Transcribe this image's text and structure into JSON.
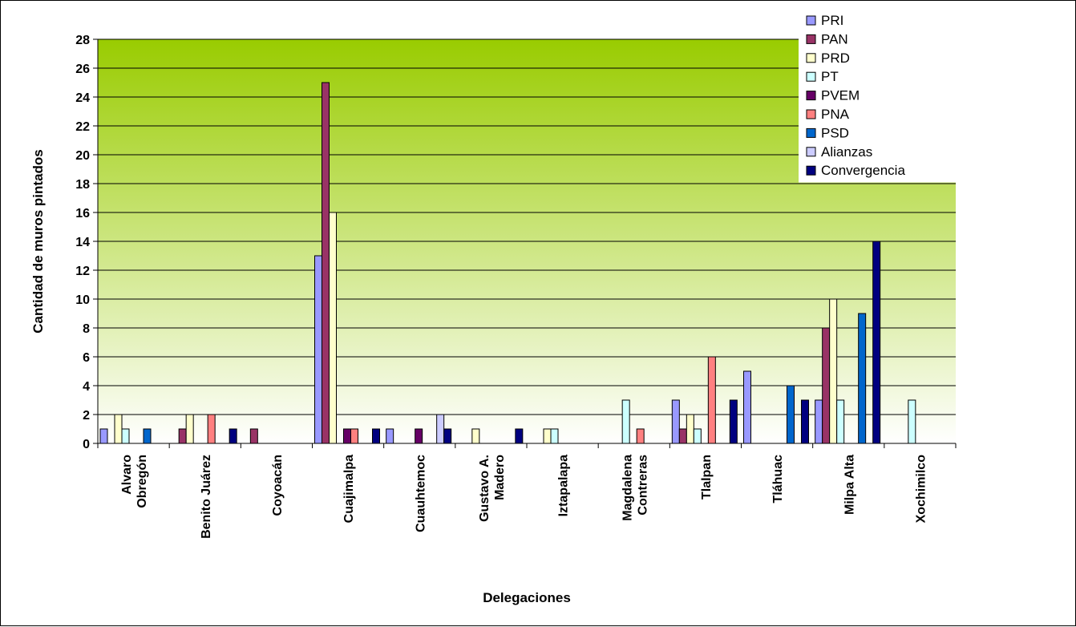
{
  "chart_data": {
    "type": "bar",
    "title": "",
    "xlabel": "Delegaciones",
    "ylabel": "Cantidad de muros pintados",
    "ylim": [
      0,
      28
    ],
    "ytick_step": 2,
    "grid": true,
    "legend_position": "top-right",
    "categories": [
      [
        "Alvaro",
        "Obregón"
      ],
      [
        "Benito Juárez"
      ],
      [
        "Coyoacán"
      ],
      [
        "Cuajimalpa"
      ],
      [
        "Cuauhtemoc"
      ],
      [
        "Gustavo A.",
        "Madero"
      ],
      [
        "Iztapalapa"
      ],
      [
        "Magdalena",
        "Contreras"
      ],
      [
        "Tlalpan"
      ],
      [
        "Tláhuac"
      ],
      [
        "Milpa Alta"
      ],
      [
        "Xochimilco"
      ]
    ],
    "series": [
      {
        "name": "PRI",
        "color": "#9999ff",
        "values": [
          1,
          0,
          0,
          13,
          1,
          0,
          0,
          0,
          3,
          5,
          3,
          0
        ]
      },
      {
        "name": "PAN",
        "color": "#993366",
        "values": [
          0,
          1,
          1,
          25,
          0,
          0,
          0,
          0,
          1,
          0,
          8,
          0
        ]
      },
      {
        "name": "PRD",
        "color": "#ffffcc",
        "values": [
          2,
          2,
          0,
          16,
          0,
          1,
          1,
          0,
          2,
          0,
          10,
          0
        ]
      },
      {
        "name": "PT",
        "color": "#ccffff",
        "values": [
          1,
          0,
          0,
          0,
          0,
          0,
          1,
          3,
          1,
          0,
          3,
          3
        ]
      },
      {
        "name": "PVEM",
        "color": "#660066",
        "values": [
          0,
          0,
          0,
          1,
          1,
          0,
          0,
          0,
          0,
          0,
          0,
          0
        ]
      },
      {
        "name": "PNA",
        "color": "#ff8080",
        "values": [
          0,
          2,
          0,
          1,
          0,
          0,
          0,
          1,
          6,
          0,
          0,
          0
        ]
      },
      {
        "name": "PSD",
        "color": "#0066cc",
        "values": [
          1,
          0,
          0,
          0,
          0,
          0,
          0,
          0,
          0,
          4,
          9,
          0
        ]
      },
      {
        "name": "Alianzas",
        "color": "#ccccff",
        "values": [
          0,
          0,
          0,
          0,
          2,
          0,
          0,
          0,
          0,
          0,
          0,
          0
        ]
      },
      {
        "name": "Convergencia",
        "color": "#000080",
        "values": [
          0,
          1,
          0,
          1,
          1,
          1,
          0,
          0,
          3,
          3,
          14,
          0
        ]
      }
    ],
    "plot_background": {
      "top_color": "#99cc00",
      "bottom_color": "#ffffff"
    }
  }
}
